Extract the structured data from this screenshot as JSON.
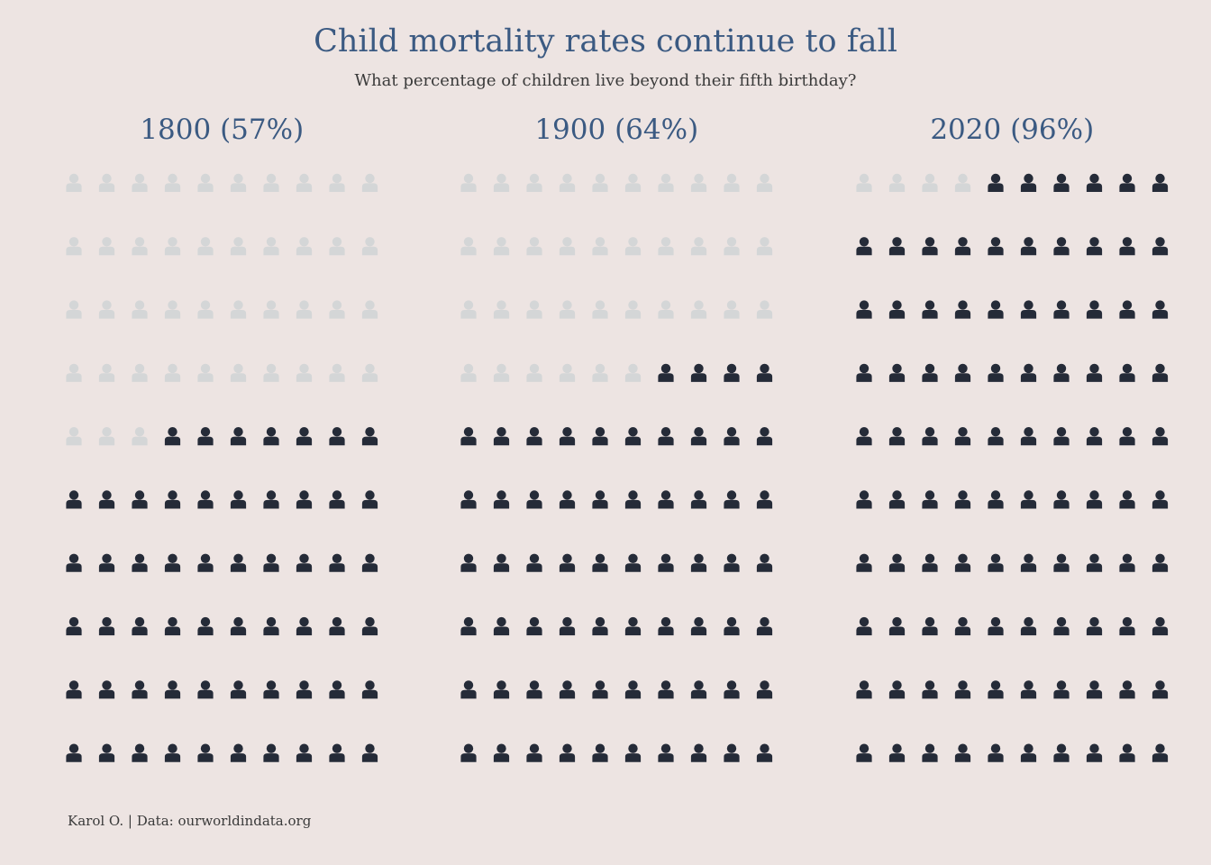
{
  "title": "Child mortality rates continue to fall",
  "subtitle": "What percentage of children live beyond their fifth birthday?",
  "caption": "Karol O. | Data: ourworldindata.org",
  "colors": {
    "background": "#EDE4E2",
    "title": "#3B5A82",
    "survived": "#252B38",
    "not_survived": "#D4D6D7"
  },
  "icon": "person-icon",
  "chart_data": {
    "type": "waffle",
    "grid": "10x10",
    "fill_order": "bottom-right to top-left",
    "panels": [
      {
        "label": "1800 (57%)",
        "year": 1800,
        "value": 57
      },
      {
        "label": "1900 (64%)",
        "year": 1900,
        "value": 64
      },
      {
        "label": "2020 (96%)",
        "year": 2020,
        "value": 96
      }
    ]
  }
}
